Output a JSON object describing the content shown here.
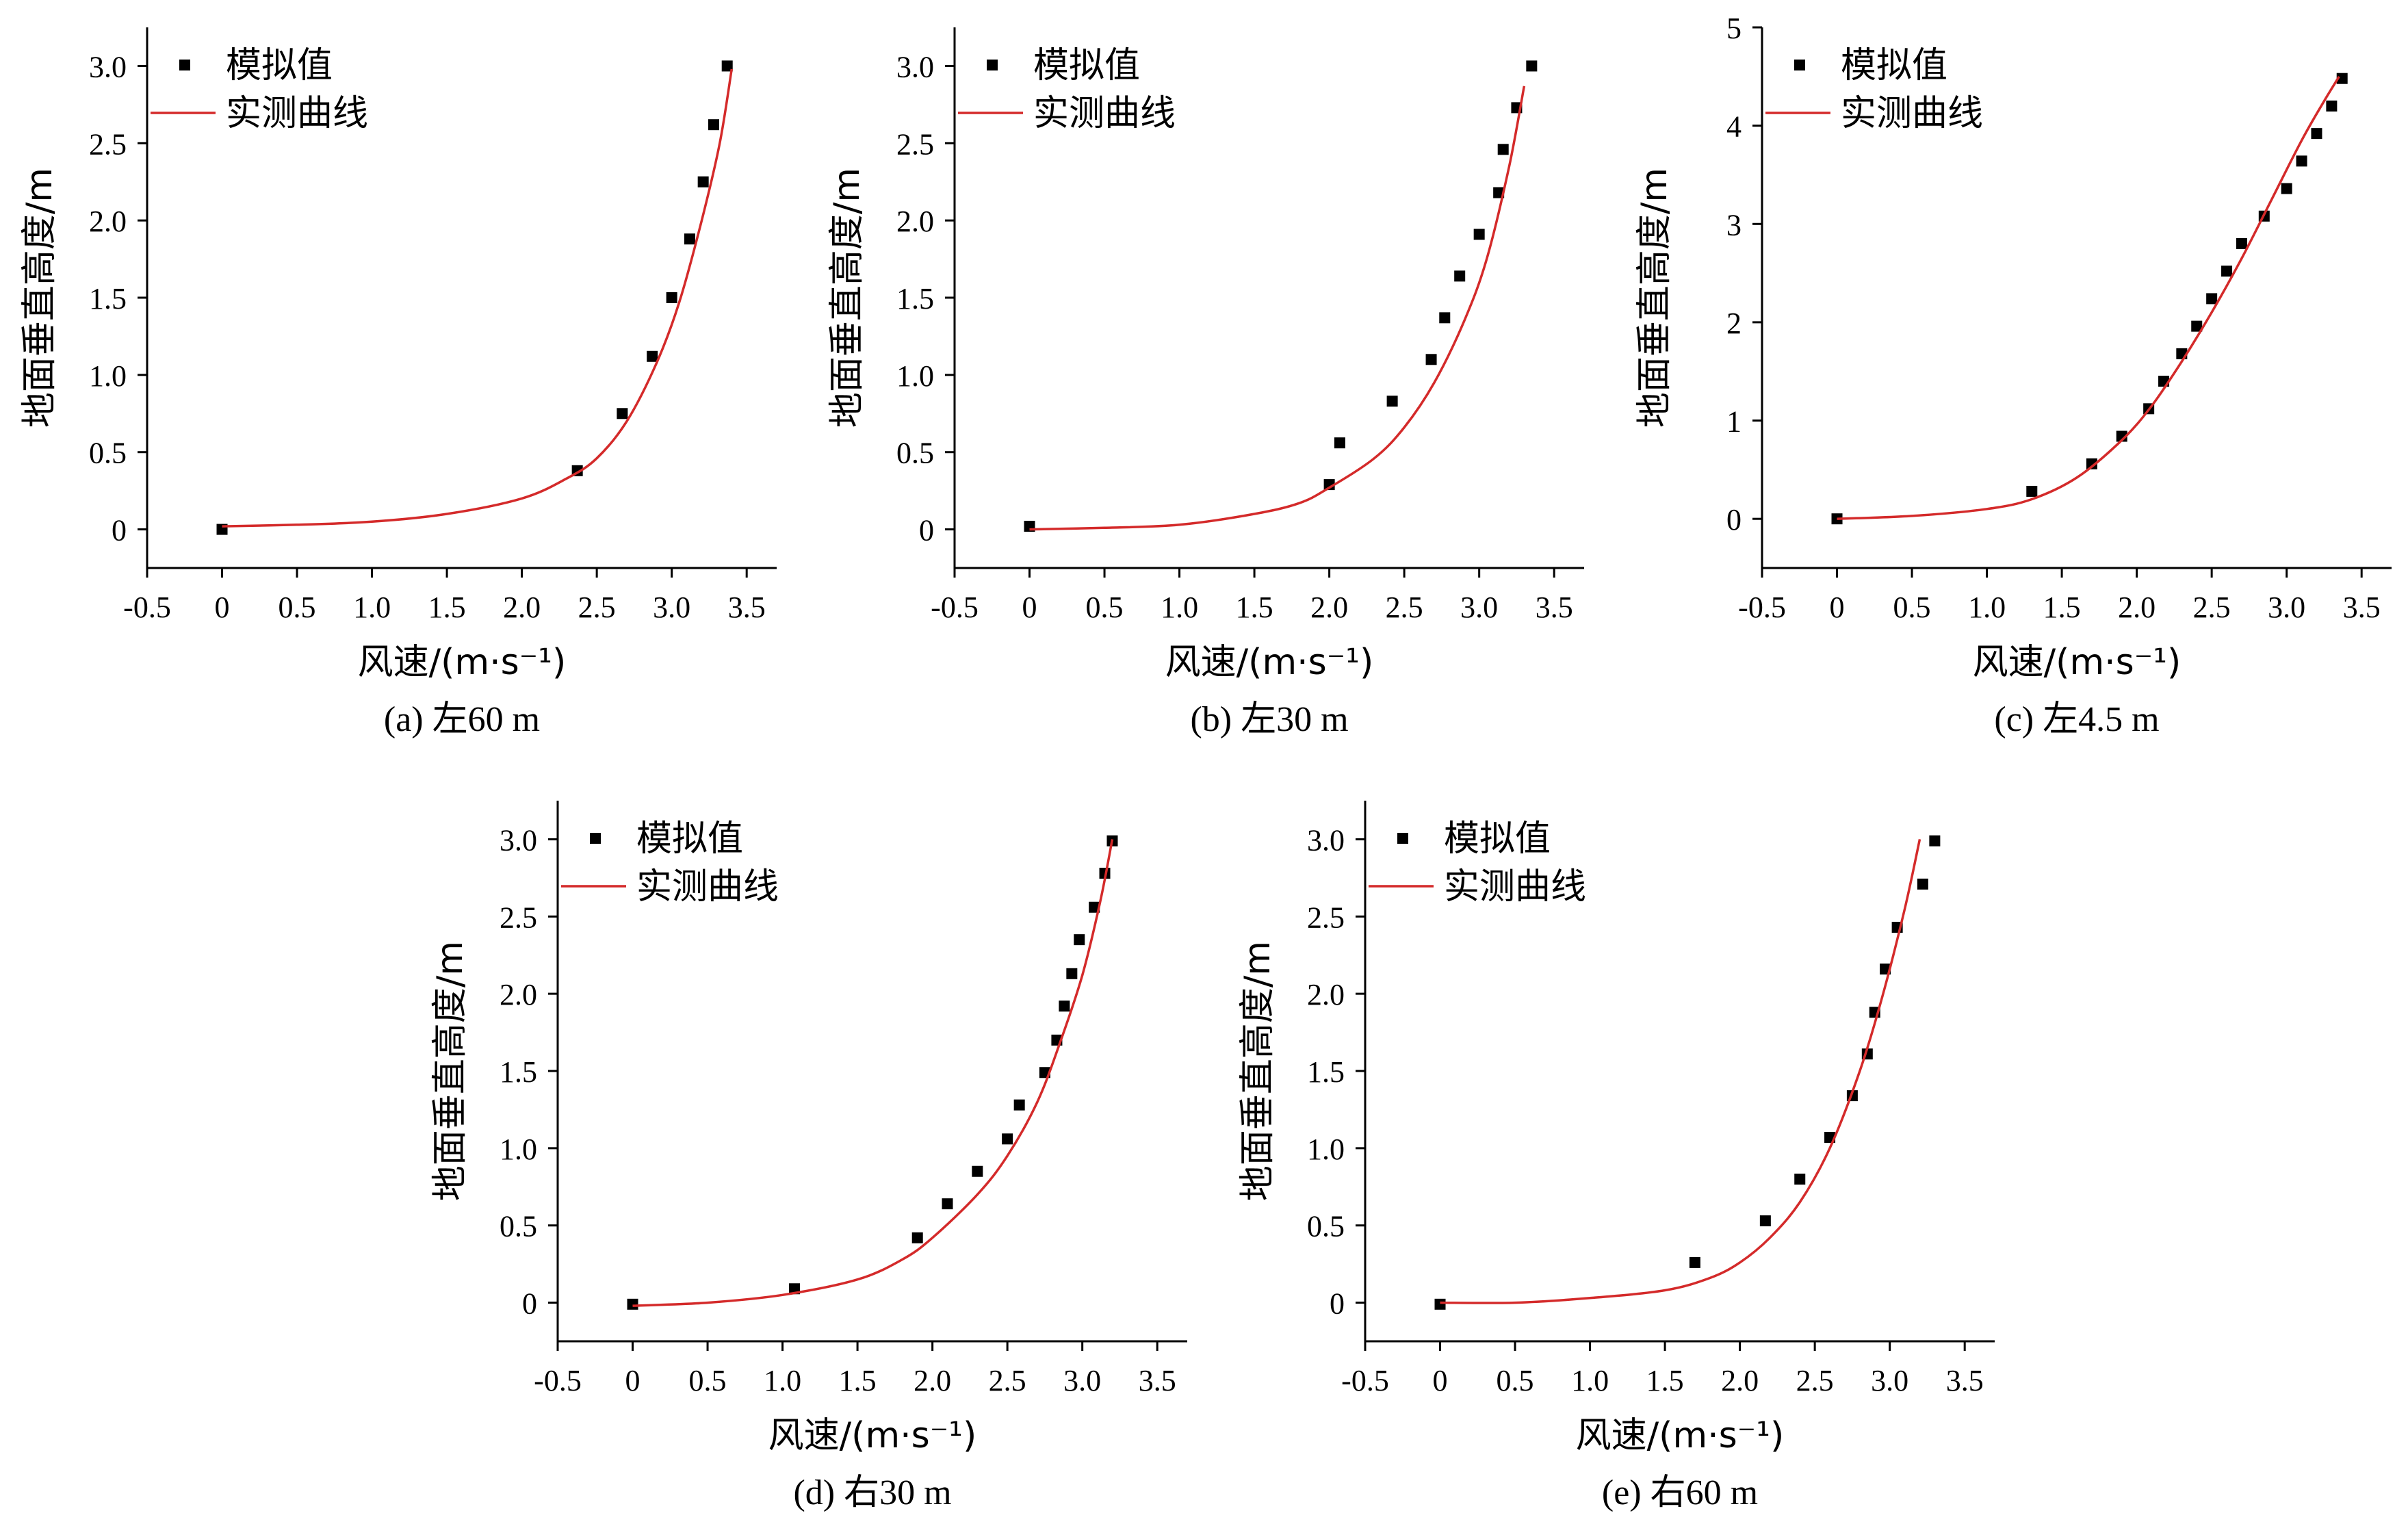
{
  "legend": {
    "sim_label": "模拟值",
    "meas_label": "实测曲线"
  },
  "colors": {
    "measured": "#d42a2a",
    "simulated": "#000000",
    "axis": "#000000"
  },
  "chart_data": [
    {
      "type": "scatter",
      "caption": "(a) 左60 m",
      "xlabel": "风速/(m·s⁻¹)",
      "ylabel": "地面垂直高度/m",
      "xlim": [
        -0.5,
        3.7
      ],
      "ylim": [
        -0.25,
        3.25
      ],
      "xticks": [
        -0.5,
        0,
        0.5,
        1.0,
        1.5,
        2.0,
        2.5,
        3.0,
        3.5
      ],
      "xticklabels": [
        "-0.5",
        "0",
        "0.5",
        "1.0",
        "1.5",
        "2.0",
        "2.5",
        "3.0",
        "3.5"
      ],
      "yticks": [
        0,
        0.5,
        1.0,
        1.5,
        2.0,
        2.5,
        3.0
      ],
      "yticklabels": [
        "0",
        "0.5",
        "1.0",
        "1.5",
        "2.0",
        "2.5",
        "3.0"
      ],
      "legend_position": "top-left",
      "series": [
        {
          "name": "模拟值",
          "kind": "markers",
          "x": [
            0,
            2.37,
            2.67,
            2.87,
            3.0,
            3.12,
            3.21,
            3.28,
            3.37
          ],
          "y": [
            0,
            0.38,
            0.75,
            1.12,
            1.5,
            1.88,
            2.25,
            2.62,
            3.0
          ]
        },
        {
          "name": "实测曲线",
          "kind": "line",
          "x": [
            0,
            0.5,
            1.0,
            1.5,
            2.0,
            2.3,
            2.5,
            2.7,
            2.9,
            3.05,
            3.2,
            3.32,
            3.4
          ],
          "y": [
            0.02,
            0.03,
            0.05,
            0.1,
            0.2,
            0.33,
            0.46,
            0.7,
            1.08,
            1.47,
            2.0,
            2.5,
            2.98
          ]
        }
      ]
    },
    {
      "type": "scatter",
      "caption": "(b) 左30 m",
      "xlabel": "风速/(m·s⁻¹)",
      "ylabel": "地面垂直高度/m",
      "xlim": [
        -0.5,
        3.7
      ],
      "ylim": [
        -0.25,
        3.25
      ],
      "xticks": [
        -0.5,
        0,
        0.5,
        1.0,
        1.5,
        2.0,
        2.5,
        3.0,
        3.5
      ],
      "xticklabels": [
        "-0.5",
        "0",
        "0.5",
        "1.0",
        "1.5",
        "2.0",
        "2.5",
        "3.0",
        "3.5"
      ],
      "yticks": [
        0,
        0.5,
        1.0,
        1.5,
        2.0,
        2.5,
        3.0
      ],
      "yticklabels": [
        "0",
        "0.5",
        "1.0",
        "1.5",
        "2.0",
        "2.5",
        "3.0"
      ],
      "legend_position": "top-left",
      "series": [
        {
          "name": "模拟值",
          "kind": "markers",
          "x": [
            0,
            2.0,
            2.07,
            2.42,
            2.68,
            2.77,
            2.87,
            3.0,
            3.13,
            3.16,
            3.25,
            3.35
          ],
          "y": [
            0.02,
            0.29,
            0.56,
            0.83,
            1.1,
            1.37,
            1.64,
            1.91,
            2.18,
            2.46,
            2.73,
            3.0
          ]
        },
        {
          "name": "实测曲线",
          "kind": "line",
          "x": [
            0,
            0.5,
            1.0,
            1.5,
            1.8,
            2.0,
            2.3,
            2.5,
            2.7,
            2.9,
            3.05,
            3.2,
            3.3
          ],
          "y": [
            0.0,
            0.01,
            0.03,
            0.1,
            0.17,
            0.27,
            0.46,
            0.66,
            0.95,
            1.35,
            1.75,
            2.35,
            2.87
          ]
        }
      ]
    },
    {
      "type": "scatter",
      "caption": "(c) 左4.5 m",
      "xlabel": "风速/(m·s⁻¹)",
      "ylabel": "地面垂直高度/m",
      "xlim": [
        -0.5,
        3.7
      ],
      "ylim": [
        -0.5,
        5.0
      ],
      "xticks": [
        -0.5,
        0,
        0.5,
        1.0,
        1.5,
        2.0,
        2.5,
        3.0,
        3.5
      ],
      "xticklabels": [
        "-0.5",
        "0",
        "0.5",
        "1.0",
        "1.5",
        "2.0",
        "2.5",
        "3.0",
        "3.5"
      ],
      "yticks": [
        0,
        1,
        2,
        3,
        4,
        5
      ],
      "yticklabels": [
        "0",
        "1",
        "2",
        "3",
        "4",
        "5"
      ],
      "legend_position": "top-left",
      "series": [
        {
          "name": "模拟值",
          "kind": "markers",
          "x": [
            0,
            1.3,
            1.7,
            1.9,
            2.08,
            2.18,
            2.3,
            2.4,
            2.5,
            2.6,
            2.7,
            2.85,
            3.0,
            3.1,
            3.2,
            3.3,
            3.37
          ],
          "y": [
            0,
            0.28,
            0.56,
            0.84,
            1.12,
            1.4,
            1.68,
            1.96,
            2.24,
            2.52,
            2.8,
            3.08,
            3.36,
            3.64,
            3.92,
            4.2,
            4.48
          ]
        },
        {
          "name": "实测曲线",
          "kind": "line",
          "x": [
            0,
            0.5,
            1.0,
            1.3,
            1.6,
            1.9,
            2.1,
            2.3,
            2.5,
            2.7,
            2.9,
            3.1,
            3.25,
            3.35
          ],
          "y": [
            0.0,
            0.03,
            0.1,
            0.2,
            0.42,
            0.8,
            1.15,
            1.6,
            2.1,
            2.65,
            3.25,
            3.85,
            4.25,
            4.5
          ]
        }
      ]
    },
    {
      "type": "scatter",
      "caption": "(d) 右30 m",
      "xlabel": "风速/(m·s⁻¹)",
      "ylabel": "地面垂直高度/m",
      "xlim": [
        -0.5,
        3.7
      ],
      "ylim": [
        -0.25,
        3.25
      ],
      "xticks": [
        -0.5,
        0,
        0.5,
        1.0,
        1.5,
        2.0,
        2.5,
        3.0,
        3.5
      ],
      "xticklabels": [
        "-0.5",
        "0",
        "0.5",
        "1.0",
        "1.5",
        "2.0",
        "2.5",
        "3.0",
        "3.5"
      ],
      "yticks": [
        0,
        0.5,
        1.0,
        1.5,
        2.0,
        2.5,
        3.0
      ],
      "yticklabels": [
        "0",
        "0.5",
        "1.0",
        "1.5",
        "2.0",
        "2.5",
        "3.0"
      ],
      "legend_position": "top-left",
      "series": [
        {
          "name": "模拟值",
          "kind": "markers",
          "x": [
            0,
            1.08,
            1.9,
            2.1,
            2.3,
            2.5,
            2.58,
            2.75,
            2.83,
            2.88,
            2.93,
            2.98,
            3.08,
            3.15,
            3.2
          ],
          "y": [
            -0.01,
            0.09,
            0.42,
            0.64,
            0.85,
            1.06,
            1.28,
            1.49,
            1.7,
            1.92,
            2.13,
            2.35,
            2.56,
            2.78,
            2.99
          ]
        },
        {
          "name": "实测曲线",
          "kind": "line",
          "x": [
            0,
            0.5,
            1.0,
            1.5,
            1.8,
            2.0,
            2.3,
            2.5,
            2.7,
            2.85,
            3.0,
            3.12,
            3.2
          ],
          "y": [
            -0.02,
            0.0,
            0.05,
            0.15,
            0.28,
            0.42,
            0.7,
            0.95,
            1.3,
            1.68,
            2.12,
            2.6,
            3.0
          ]
        }
      ]
    },
    {
      "type": "scatter",
      "caption": "(e) 右60 m",
      "xlabel": "风速/(m·s⁻¹)",
      "ylabel": "地面垂直高度/m",
      "xlim": [
        -0.5,
        3.7
      ],
      "ylim": [
        -0.25,
        3.25
      ],
      "xticks": [
        -0.5,
        0,
        0.5,
        1.0,
        1.5,
        2.0,
        2.5,
        3.0,
        3.5
      ],
      "xticklabels": [
        "-0.5",
        "0",
        "0.5",
        "1.0",
        "1.5",
        "2.0",
        "2.5",
        "3.0",
        "3.5"
      ],
      "yticks": [
        0,
        0.5,
        1.0,
        1.5,
        2.0,
        2.5,
        3.0
      ],
      "yticklabels": [
        "0",
        "0.5",
        "1.0",
        "1.5",
        "2.0",
        "2.5",
        "3.0"
      ],
      "legend_position": "top-left",
      "series": [
        {
          "name": "模拟值",
          "kind": "markers",
          "x": [
            0,
            1.7,
            2.17,
            2.4,
            2.6,
            2.75,
            2.85,
            2.9,
            2.97,
            3.05,
            3.22,
            3.3
          ],
          "y": [
            -0.01,
            0.26,
            0.53,
            0.8,
            1.07,
            1.34,
            1.61,
            1.88,
            2.16,
            2.43,
            2.71,
            2.99
          ]
        },
        {
          "name": "实测曲线",
          "kind": "line",
          "x": [
            0,
            0.5,
            1.0,
            1.5,
            1.8,
            2.0,
            2.2,
            2.4,
            2.6,
            2.8,
            2.95,
            3.1,
            3.2
          ],
          "y": [
            0.0,
            0.0,
            0.03,
            0.08,
            0.16,
            0.26,
            0.42,
            0.65,
            1.0,
            1.5,
            1.98,
            2.55,
            3.0
          ]
        }
      ]
    }
  ]
}
